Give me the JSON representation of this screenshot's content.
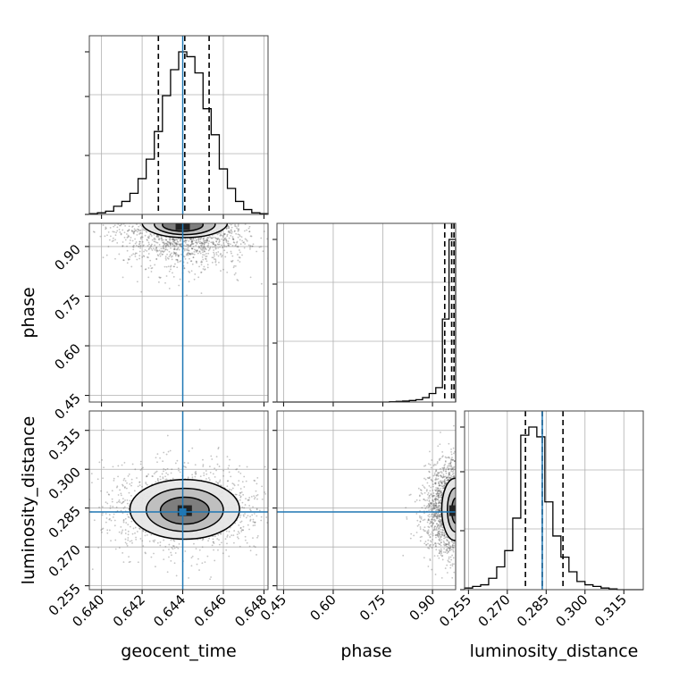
{
  "chart_data": {
    "type": "corner",
    "parameters": [
      "geocent_time",
      "phase",
      "luminosity_distance"
    ],
    "truths": {
      "geocent_time": 0.644,
      "phase": null,
      "luminosity_distance": 0.2835
    },
    "truth_color": "#1f77b4",
    "grid": true,
    "ranges": {
      "geocent_time": [
        0.6394,
        0.6482
      ],
      "phase": [
        0.43,
        0.97
      ],
      "luminosity_distance": [
        0.2535,
        0.3225
      ]
    },
    "ticks": {
      "geocent_time": [
        "0.640",
        "0.642",
        "0.644",
        "0.646",
        "0.648"
      ],
      "phase": [
        "0.45",
        "0.60",
        "0.75",
        "0.90"
      ],
      "luminosity_distance": [
        "0.255",
        "0.270",
        "0.285",
        "0.300",
        "0.315"
      ]
    },
    "marginals": {
      "geocent_time": {
        "quantiles": [
          0.6428,
          0.6441,
          0.6453
        ],
        "bin_edges": [
          0.6394,
          0.6398,
          0.6402,
          0.6406,
          0.641,
          0.6414,
          0.6418,
          0.6422,
          0.6426,
          0.643,
          0.6434,
          0.6438,
          0.6442,
          0.6446,
          0.645,
          0.6454,
          0.6458,
          0.6462,
          0.6466,
          0.647,
          0.6474,
          0.6478,
          0.6482
        ],
        "counts": [
          0.005,
          0.01,
          0.02,
          0.05,
          0.08,
          0.13,
          0.22,
          0.34,
          0.51,
          0.73,
          0.89,
          1.0,
          0.97,
          0.87,
          0.65,
          0.49,
          0.28,
          0.16,
          0.08,
          0.03,
          0.01,
          0.005
        ]
      },
      "phase": {
        "quantiles": [
          0.937,
          0.958,
          0.965
        ],
        "bin_edges": [
          0.43,
          0.45,
          0.47,
          0.49,
          0.51,
          0.53,
          0.55,
          0.57,
          0.59,
          0.61,
          0.63,
          0.65,
          0.67,
          0.69,
          0.71,
          0.73,
          0.75,
          0.77,
          0.79,
          0.81,
          0.83,
          0.85,
          0.87,
          0.89,
          0.91,
          0.93,
          0.95,
          0.97
        ],
        "counts": [
          0,
          0,
          0,
          0,
          0,
          0,
          0,
          0,
          0,
          0,
          0,
          0,
          0,
          0,
          0,
          0,
          0,
          0.002,
          0.004,
          0.006,
          0.009,
          0.014,
          0.026,
          0.05,
          0.085,
          0.49,
          0.96
        ]
      },
      "luminosity_distance": {
        "quantiles": [
          0.277,
          0.2835,
          0.2915
        ],
        "bin_edges": [
          0.2535,
          0.2566,
          0.2597,
          0.2628,
          0.2659,
          0.269,
          0.2721,
          0.2752,
          0.2783,
          0.2814,
          0.2845,
          0.2876,
          0.2907,
          0.2938,
          0.2969,
          0.3,
          0.3031,
          0.3062,
          0.3093,
          0.3124,
          0.3155,
          0.3186,
          0.3225
        ],
        "counts": [
          0.01,
          0.02,
          0.03,
          0.07,
          0.14,
          0.24,
          0.44,
          0.95,
          1.0,
          0.94,
          0.54,
          0.33,
          0.2,
          0.11,
          0.05,
          0.03,
          0.02,
          0.01,
          0.005,
          0,
          0,
          0
        ]
      }
    },
    "pairs": [
      {
        "x": "geocent_time",
        "y": "phase",
        "contours": [
          {
            "center": [
              0.6441,
              0.972
            ],
            "radius": [
              0.0021,
              0.045
            ]
          },
          {
            "center": [
              0.6441,
              0.968
            ],
            "radius": [
              0.0015,
              0.032
            ]
          },
          {
            "center": [
              0.644,
              0.966
            ],
            "radius": [
              0.001,
              0.02
            ]
          }
        ]
      },
      {
        "x": "geocent_time",
        "y": "luminosity_distance",
        "contours": [
          {
            "center": [
              0.6441,
              0.2845
            ],
            "radius": [
              0.0027,
              0.0115
            ]
          },
          {
            "center": [
              0.6441,
              0.2843
            ],
            "radius": [
              0.0019,
              0.0083
            ]
          },
          {
            "center": [
              0.6441,
              0.284
            ],
            "radius": [
              0.0012,
              0.0052
            ]
          }
        ]
      },
      {
        "x": "phase",
        "y": "luminosity_distance",
        "contours": [
          {
            "center": [
              0.968,
              0.2845
            ],
            "radius": [
              0.04,
              0.012
            ]
          },
          {
            "center": [
              0.97,
              0.2843
            ],
            "radius": [
              0.025,
              0.0085
            ]
          },
          {
            "center": [
              0.972,
              0.284
            ],
            "radius": [
              0.014,
              0.005
            ]
          }
        ]
      }
    ]
  }
}
